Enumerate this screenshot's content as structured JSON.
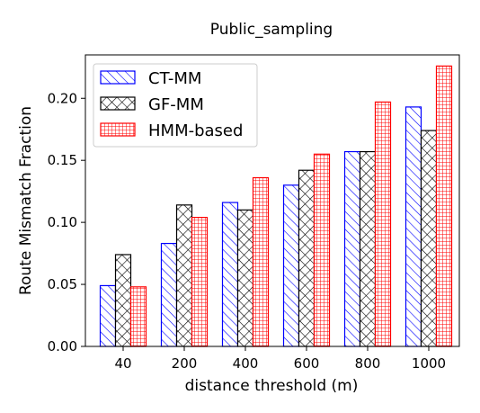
{
  "chart_data": {
    "type": "bar",
    "title": "Public_sampling",
    "xlabel": "distance threshold (m)",
    "ylabel": "Route Mismatch Fraction",
    "categories": [
      "40",
      "200",
      "400",
      "600",
      "800",
      "1000"
    ],
    "ylim": [
      0,
      0.235
    ],
    "yticks": [
      "0.00",
      "0.05",
      "0.10",
      "0.15",
      "0.20"
    ],
    "grid": false,
    "legend_position": "top-left",
    "series": [
      {
        "name": "CT-MM",
        "color": "#0000ff",
        "pattern": "diagonal-hatch",
        "values": [
          0.049,
          0.083,
          0.116,
          0.13,
          0.157,
          0.193
        ]
      },
      {
        "name": "GF-MM",
        "color": "#000000",
        "pattern": "cross-hatch",
        "values": [
          0.074,
          0.114,
          0.11,
          0.142,
          0.157,
          0.174
        ]
      },
      {
        "name": "HMM-based",
        "color": "#ff0000",
        "pattern": "grid-hatch",
        "values": [
          0.048,
          0.104,
          0.136,
          0.155,
          0.197,
          0.226
        ]
      }
    ]
  }
}
